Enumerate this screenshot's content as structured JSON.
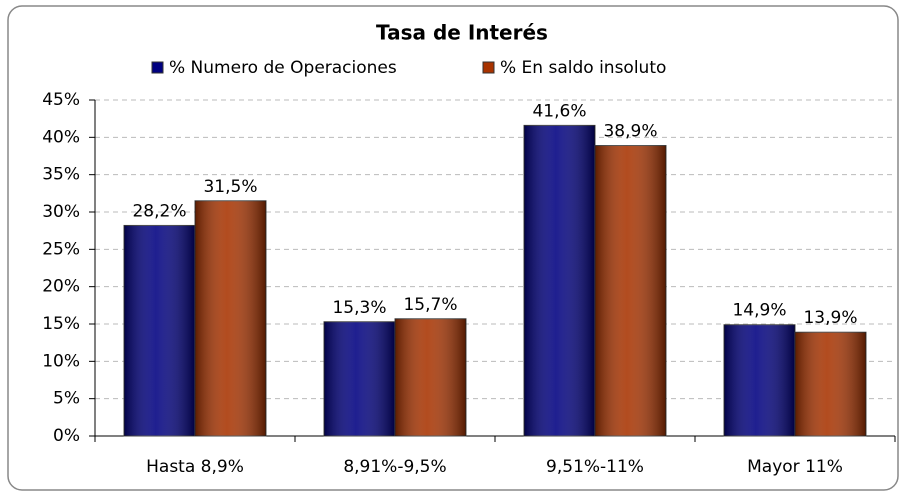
{
  "chart_data": {
    "type": "bar",
    "title": "Tasa de Interés",
    "categories": [
      "Hasta 8,9%",
      "8,91%-9,5%",
      "9,51%-11%",
      "Mayor 11%"
    ],
    "series": [
      {
        "name": "% Numero de Operaciones",
        "color": "#000080",
        "values": [
          28.2,
          15.3,
          41.6,
          14.9
        ],
        "value_labels": [
          "28,2%",
          "15,3%",
          "41,6%",
          "14,9%"
        ]
      },
      {
        "name": "% En saldo insoluto",
        "color": "#a83300",
        "values": [
          31.5,
          15.7,
          38.9,
          13.9
        ],
        "value_labels": [
          "31,5%",
          "15,7%",
          "38,9%",
          "13,9%"
        ]
      }
    ],
    "ylim": [
      0,
      45
    ],
    "yticks": [
      {
        "value": 0,
        "label": "0%"
      },
      {
        "value": 5,
        "label": "5%"
      },
      {
        "value": 10,
        "label": "10%"
      },
      {
        "value": 15,
        "label": "15%"
      },
      {
        "value": 20,
        "label": "20%"
      },
      {
        "value": 25,
        "label": "25%"
      },
      {
        "value": 30,
        "label": "30%"
      },
      {
        "value": 35,
        "label": "35%"
      },
      {
        "value": 40,
        "label": "40%"
      },
      {
        "value": 45,
        "label": "45%"
      }
    ],
    "grid": true,
    "legend": "top"
  }
}
